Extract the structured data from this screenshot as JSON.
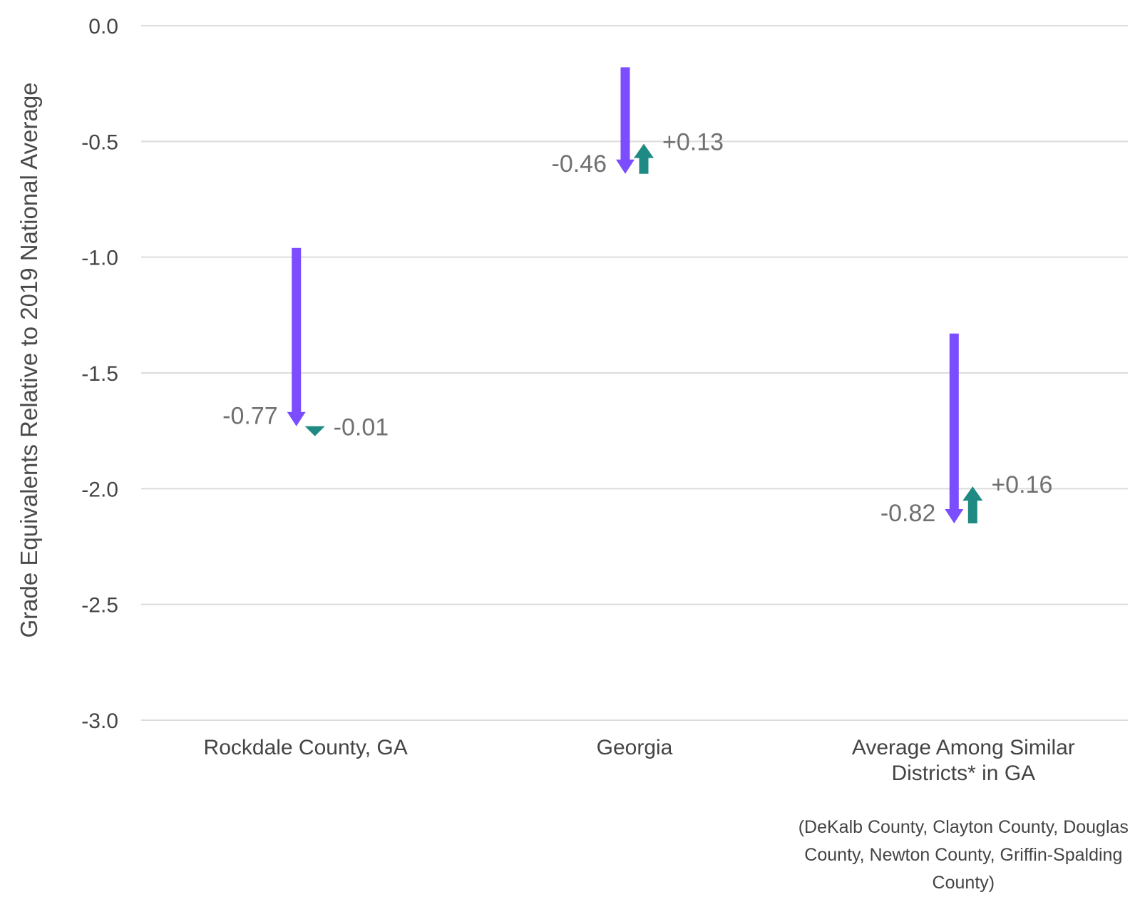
{
  "chart_data": {
    "type": "arrow",
    "ylabel": "Grade Equivalents Relative to 2019 National Average",
    "ylim": [
      -3.0,
      0.0
    ],
    "yticks": [
      0.0,
      -0.5,
      -1.0,
      -1.5,
      -2.0,
      -2.5,
      -3.0
    ],
    "ytick_labels": [
      "0.0",
      "-0.5",
      "-1.0",
      "-1.5",
      "-2.0",
      "-2.5",
      "-3.0"
    ],
    "grid": true,
    "colors": {
      "decline": "#7B4DFF",
      "change": "#1F8A84"
    },
    "categories": [
      {
        "label_lines": [
          "Rockdale County, GA"
        ],
        "start": -0.96,
        "decline": -0.77,
        "change": -0.01,
        "decline_label": "-0.77",
        "change_label": "-0.01"
      },
      {
        "label_lines": [
          "Georgia"
        ],
        "start": -0.18,
        "decline": -0.46,
        "change": 0.13,
        "decline_label": "-0.46",
        "change_label": "+0.13"
      },
      {
        "label_lines": [
          "Average Among Similar",
          "Districts* in GA"
        ],
        "start": -1.33,
        "decline": -0.82,
        "change": 0.16,
        "decline_label": "-0.82",
        "change_label": "+0.16"
      }
    ],
    "footnote_lines": [
      "(DeKalb County, Clayton County, Douglas",
      "County, Newton County, Griffin-Spalding",
      "County)"
    ]
  }
}
